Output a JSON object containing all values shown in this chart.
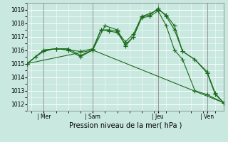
{
  "title": "",
  "xlabel": "Pression niveau de la mer( hPa )",
  "ylabel": "",
  "bg_color": "#c8e8e0",
  "grid_color": "#ffffff",
  "line_color": "#1a6b1a",
  "ylim": [
    1011.5,
    1019.5
  ],
  "yticks": [
    1012,
    1013,
    1014,
    1015,
    1016,
    1017,
    1018,
    1019
  ],
  "xlim": [
    0,
    96
  ],
  "xtick_positions": [
    8,
    32,
    64,
    88
  ],
  "xtick_labels": [
    "| Mer",
    "| Sam",
    "| Jeu",
    "| Ven"
  ],
  "series": [
    {
      "x": [
        0,
        4,
        8,
        14,
        20,
        26,
        32,
        38,
        44,
        48,
        52,
        56,
        60,
        64,
        68,
        72,
        76,
        82,
        88,
        92,
        96
      ],
      "y": [
        1015.0,
        1015.5,
        1015.9,
        1016.1,
        1016.0,
        1015.5,
        1016.0,
        1017.8,
        1017.5,
        1016.3,
        1017.0,
        1018.5,
        1018.7,
        1019.0,
        1018.6,
        1017.8,
        1015.9,
        1015.3,
        1014.3,
        1012.7,
        1012.1
      ]
    },
    {
      "x": [
        0,
        4,
        8,
        14,
        20,
        26,
        32,
        36,
        40,
        44,
        48,
        52,
        56,
        60,
        64,
        68,
        72,
        76,
        82,
        88,
        92,
        96
      ],
      "y": [
        1015.0,
        1015.5,
        1016.0,
        1016.1,
        1016.1,
        1015.6,
        1016.0,
        1017.5,
        1017.5,
        1017.4,
        1016.6,
        1017.2,
        1018.5,
        1018.6,
        1019.1,
        1018.5,
        1017.5,
        1015.9,
        1015.3,
        1014.4,
        1012.8,
        1012.1
      ]
    },
    {
      "x": [
        0,
        8,
        14,
        20,
        26,
        32,
        36,
        40,
        44,
        48,
        52,
        56,
        60,
        64,
        68,
        72,
        76,
        82,
        88,
        96
      ],
      "y": [
        1015.0,
        1016.0,
        1016.1,
        1016.0,
        1015.9,
        1016.1,
        1017.5,
        1017.4,
        1017.3,
        1016.4,
        1017.0,
        1018.4,
        1018.5,
        1018.9,
        1017.8,
        1016.0,
        1015.3,
        1013.0,
        1012.7,
        1012.1
      ]
    },
    {
      "x": [
        0,
        32,
        96
      ],
      "y": [
        1015.0,
        1016.0,
        1012.1
      ]
    }
  ],
  "vlines_x": [
    8,
    32,
    64,
    88
  ],
  "vline_color": "#888888",
  "marker": "+",
  "markersize": 4,
  "linewidth": 0.8
}
